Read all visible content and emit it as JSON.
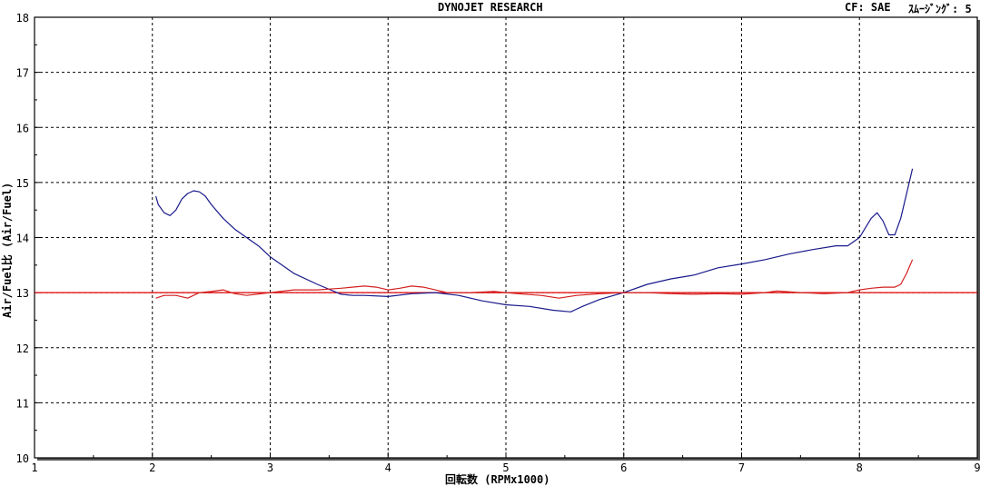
{
  "header": {
    "title": "DYNOJET  RESEARCH",
    "cf": "CF: SAE",
    "smoothing": "ｽﾑｰｼﾞﾝｸﾞ: 5"
  },
  "colors": {
    "background": "#ffffff",
    "grid": "#000000",
    "reference_line": "#e00000",
    "series_blue": "#1a1a8c",
    "series_red": "#d42020"
  },
  "chart_data": {
    "type": "line",
    "title": "DYNOJET  RESEARCH",
    "xlabel": "回転数 (RPMx1000)",
    "ylabel": "Air/Fuel比 (Air/Fuel)",
    "xlim": [
      1,
      9
    ],
    "ylim": [
      10,
      18
    ],
    "xticks": [
      1,
      2,
      3,
      4,
      5,
      6,
      7,
      8,
      9
    ],
    "yticks": [
      10,
      11,
      12,
      13,
      14,
      15,
      16,
      17,
      18
    ],
    "grid": true,
    "reference_line": 13.0,
    "series": [
      {
        "color": "#1a1a8c",
        "x": [
          2.03,
          2.05,
          2.1,
          2.15,
          2.2,
          2.25,
          2.3,
          2.35,
          2.4,
          2.45,
          2.5,
          2.6,
          2.7,
          2.8,
          2.9,
          3.0,
          3.2,
          3.4,
          3.6,
          3.7,
          3.8,
          4.0,
          4.2,
          4.4,
          4.6,
          4.8,
          5.0,
          5.2,
          5.4,
          5.55,
          5.65,
          5.8,
          6.0,
          6.2,
          6.4,
          6.6,
          6.8,
          7.0,
          7.2,
          7.4,
          7.6,
          7.8,
          7.9,
          8.0,
          8.1,
          8.15,
          8.2,
          8.25,
          8.3,
          8.35,
          8.4,
          8.45
        ],
        "y": [
          14.75,
          14.6,
          14.45,
          14.4,
          14.5,
          14.7,
          14.8,
          14.85,
          14.83,
          14.75,
          14.6,
          14.35,
          14.15,
          14.0,
          13.85,
          13.65,
          13.35,
          13.15,
          12.97,
          12.95,
          12.95,
          12.93,
          12.98,
          13.0,
          12.95,
          12.85,
          12.78,
          12.75,
          12.68,
          12.65,
          12.75,
          12.88,
          13.0,
          13.15,
          13.25,
          13.32,
          13.45,
          13.52,
          13.6,
          13.7,
          13.78,
          13.85,
          13.85,
          14.0,
          14.35,
          14.45,
          14.3,
          14.05,
          14.05,
          14.35,
          14.8,
          15.25
        ]
      },
      {
        "color": "#d42020",
        "x": [
          2.03,
          2.1,
          2.2,
          2.3,
          2.4,
          2.5,
          2.6,
          2.7,
          2.8,
          3.0,
          3.2,
          3.4,
          3.6,
          3.8,
          3.9,
          4.0,
          4.1,
          4.2,
          4.3,
          4.5,
          4.7,
          4.9,
          5.1,
          5.3,
          5.45,
          5.6,
          5.8,
          6.0,
          6.2,
          6.4,
          6.6,
          6.8,
          7.0,
          7.2,
          7.3,
          7.5,
          7.7,
          7.9,
          8.0,
          8.1,
          8.2,
          8.3,
          8.35,
          8.4,
          8.45
        ],
        "y": [
          12.9,
          12.95,
          12.95,
          12.9,
          13.0,
          13.02,
          13.05,
          12.98,
          12.95,
          13.0,
          13.05,
          13.05,
          13.08,
          13.12,
          13.1,
          13.05,
          13.08,
          13.12,
          13.1,
          13.0,
          13.0,
          13.02,
          12.98,
          12.95,
          12.9,
          12.95,
          12.98,
          13.0,
          13.0,
          12.98,
          12.97,
          12.98,
          12.97,
          13.0,
          13.03,
          13.0,
          12.98,
          13.0,
          13.05,
          13.08,
          13.1,
          13.1,
          13.15,
          13.35,
          13.6
        ]
      }
    ]
  }
}
